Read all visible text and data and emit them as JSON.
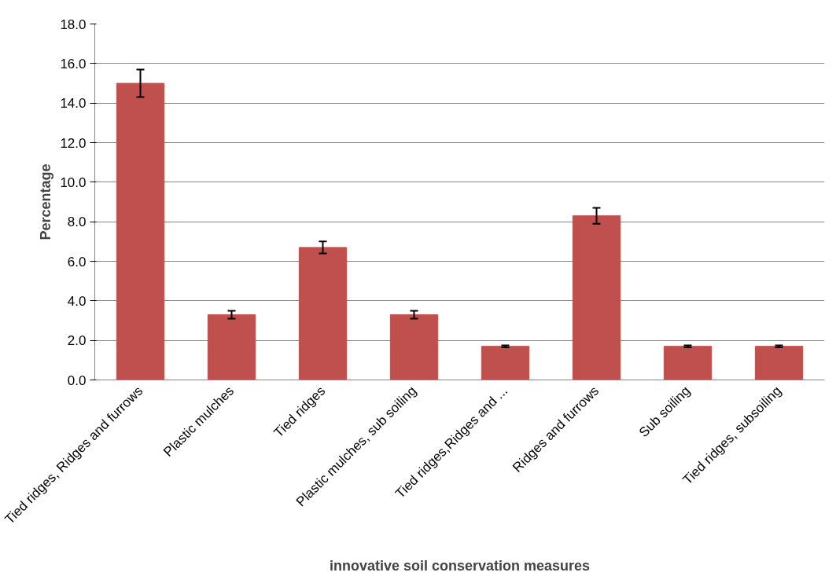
{
  "chart_data": {
    "type": "bar",
    "xlabel": "innovative soil conservation measures",
    "ylabel": "Percentage",
    "categories": [
      "Tied ridges, Ridges and furrows",
      "Plastic mulches",
      "Tied ridges",
      "Plastic mulches, sub soiling",
      "Tied ridges,Ridges and ...",
      "Ridges and furrows",
      "Sub soiling",
      "Tied ridges, subsoiling"
    ],
    "values": [
      15.0,
      3.3,
      6.7,
      3.3,
      1.7,
      8.3,
      1.7,
      1.7
    ],
    "errors": [
      0.7,
      0.2,
      0.3,
      0.2,
      0.05,
      0.4,
      0.05,
      0.05
    ],
    "color": "#c0504d",
    "ylim": [
      0,
      18
    ],
    "yticks": [
      {
        "value": 0,
        "label": "0.0"
      },
      {
        "value": 2,
        "label": "2.0"
      },
      {
        "value": 4,
        "label": "4.0"
      },
      {
        "value": 6,
        "label": "6.0"
      },
      {
        "value": 8,
        "label": "8.0"
      },
      {
        "value": 10,
        "label": "10.0"
      },
      {
        "value": 12,
        "label": "12.0"
      },
      {
        "value": 14,
        "label": "14.0"
      },
      {
        "value": 16,
        "label": "16.0"
      },
      {
        "value": 18,
        "label": "18.0"
      }
    ],
    "grid": "y"
  }
}
